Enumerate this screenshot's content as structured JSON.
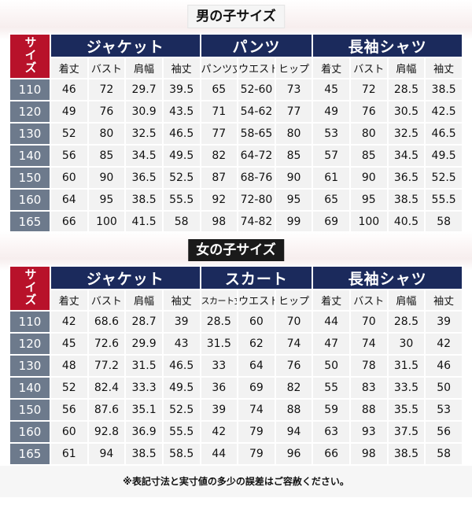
{
  "boys": {
    "title": "男の子サイズ",
    "corner": "サイズ",
    "groups": [
      "ジャケット",
      "パンツ",
      "長袖シャツ"
    ],
    "subheaders": [
      "着丈",
      "バスト",
      "肩幅",
      "袖丈",
      "パンツ丈",
      "ウエスト",
      "ヒップ",
      "着丈",
      "バスト",
      "肩幅",
      "袖丈"
    ],
    "rows": [
      [
        "110",
        "46",
        "72",
        "29.7",
        "39.5",
        "65",
        "52-60",
        "73",
        "45",
        "72",
        "28.5",
        "38.5"
      ],
      [
        "120",
        "49",
        "76",
        "30.9",
        "43.5",
        "71",
        "54-62",
        "77",
        "49",
        "76",
        "30.5",
        "42.5"
      ],
      [
        "130",
        "52",
        "80",
        "32.5",
        "46.5",
        "77",
        "58-65",
        "80",
        "53",
        "80",
        "32.5",
        "46.5"
      ],
      [
        "140",
        "56",
        "85",
        "34.5",
        "49.5",
        "82",
        "64-72",
        "85",
        "57",
        "85",
        "34.5",
        "49.5"
      ],
      [
        "150",
        "60",
        "90",
        "36.5",
        "52.5",
        "87",
        "68-76",
        "90",
        "61",
        "90",
        "36.5",
        "52.5"
      ],
      [
        "160",
        "64",
        "95",
        "38.5",
        "55.5",
        "92",
        "72-80",
        "95",
        "65",
        "95",
        "38.5",
        "55.5"
      ],
      [
        "165",
        "66",
        "100",
        "41.5",
        "58",
        "98",
        "74-82",
        "99",
        "69",
        "100",
        "40.5",
        "58"
      ]
    ]
  },
  "girls": {
    "title": "女の子サイズ",
    "corner": "サイズ",
    "groups": [
      "ジャケット",
      "スカート",
      "長袖シャツ"
    ],
    "subheaders": [
      "着丈",
      "バスト",
      "肩幅",
      "袖丈",
      "スカート丈",
      "ウエスト",
      "ヒップ",
      "着丈",
      "バスト",
      "肩幅",
      "袖丈"
    ],
    "rows": [
      [
        "110",
        "42",
        "68.6",
        "28.7",
        "39",
        "28.5",
        "60",
        "70",
        "44",
        "70",
        "28.5",
        "39"
      ],
      [
        "120",
        "45",
        "72.6",
        "29.9",
        "43",
        "31.5",
        "62",
        "74",
        "47",
        "74",
        "30",
        "42"
      ],
      [
        "130",
        "48",
        "77.2",
        "31.5",
        "46.5",
        "33",
        "64",
        "76",
        "50",
        "78",
        "31.5",
        "46"
      ],
      [
        "140",
        "52",
        "82.4",
        "33.3",
        "49.5",
        "36",
        "69",
        "82",
        "55",
        "83",
        "33.5",
        "50"
      ],
      [
        "150",
        "56",
        "87.6",
        "35.1",
        "52.5",
        "39",
        "74",
        "88",
        "59",
        "88",
        "35.5",
        "53"
      ],
      [
        "160",
        "60",
        "92.8",
        "36.9",
        "55.5",
        "42",
        "79",
        "94",
        "63",
        "93",
        "37.5",
        "56"
      ],
      [
        "165",
        "61",
        "94",
        "38.5",
        "58.5",
        "44",
        "79",
        "96",
        "66",
        "98",
        "38.5",
        "58"
      ]
    ]
  },
  "note": "※表記寸法と実寸値の多少の誤差はご容赦ください。",
  "colors": {
    "group_header": "#1b2a5c",
    "size_corner": "#b8122a",
    "row_header": "#6d7a8c",
    "cell_bg": "#f2f2f2"
  }
}
